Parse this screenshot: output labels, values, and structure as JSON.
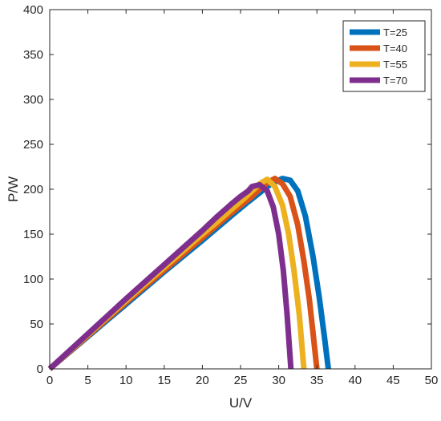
{
  "chart_data": {
    "type": "line",
    "xlabel": "U/V",
    "ylabel": "P/W",
    "xlim": [
      0,
      50
    ],
    "ylim": [
      0,
      400
    ],
    "xticks": [
      0,
      5,
      10,
      15,
      20,
      25,
      30,
      35,
      40,
      45,
      50
    ],
    "yticks": [
      0,
      50,
      100,
      150,
      200,
      250,
      300,
      350,
      400
    ],
    "grid": false,
    "legend_position": "top-right",
    "series": [
      {
        "name": "T=25",
        "color": "#0072BD",
        "x": [
          0,
          5,
          10,
          15,
          20,
          24,
          26,
          27.5,
          28.5,
          29.5,
          30.5,
          31.5,
          32.5,
          33.5,
          34.5,
          35.3,
          36,
          36.5
        ],
        "y": [
          0,
          36,
          72,
          108,
          143,
          172,
          186,
          196,
          203,
          208,
          212,
          210,
          198,
          170,
          125,
          80,
          35,
          0
        ]
      },
      {
        "name": "T=40",
        "color": "#D95319",
        "x": [
          0,
          5,
          10,
          15,
          20,
          23,
          25,
          26.5,
          27.5,
          28.5,
          29.5,
          30.5,
          31.5,
          32.5,
          33.3,
          34,
          34.5,
          35
        ],
        "y": [
          0,
          37,
          74,
          110,
          146,
          168,
          182,
          192,
          200,
          207,
          212,
          206,
          192,
          160,
          120,
          78,
          40,
          0
        ]
      },
      {
        "name": "T=55",
        "color": "#EDB120",
        "x": [
          0,
          5,
          10,
          15,
          20,
          22,
          24,
          25.5,
          26.5,
          27.5,
          28.5,
          29.5,
          30.5,
          31.3,
          32,
          32.7,
          33.3
        ],
        "y": [
          0,
          38,
          76,
          113,
          150,
          164,
          179,
          190,
          198,
          206,
          211,
          203,
          182,
          150,
          110,
          60,
          0
        ]
      },
      {
        "name": "T=70",
        "color": "#7E2F8E",
        "x": [
          0,
          5,
          10,
          15,
          20,
          22,
          24,
          25,
          26,
          26.5,
          27.5,
          28.5,
          29.3,
          30,
          30.6,
          31.1,
          31.6
        ],
        "y": [
          0,
          39,
          78,
          116,
          154,
          170,
          185,
          192,
          198,
          203,
          205,
          198,
          180,
          150,
          110,
          60,
          0
        ]
      }
    ]
  }
}
